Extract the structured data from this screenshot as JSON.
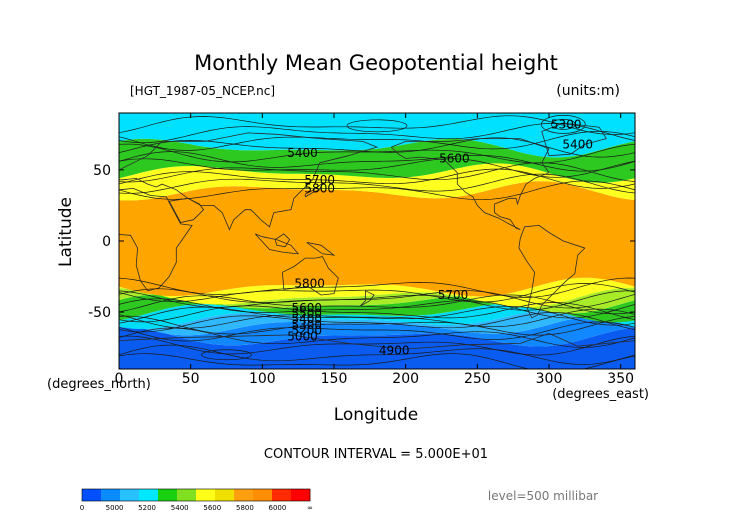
{
  "chart_data": {
    "type": "heatmap",
    "title": "Monthly Mean Geopotential height",
    "file_label": "[HGT_1987-05_NCEP.nc]",
    "units_label": "(units:m)",
    "xlabel": "Longitude",
    "ylabel": "Latitude",
    "x_unit_label": "(degrees_east)",
    "y_unit_label": "(degrees_north)",
    "xlim": [
      0,
      360
    ],
    "ylim": [
      -90,
      90
    ],
    "x_ticks": [
      0,
      50,
      100,
      150,
      200,
      250,
      300,
      350
    ],
    "y_ticks": [
      50,
      0,
      -50
    ],
    "contour_interval_text": "CONTOUR INTERVAL = 5.000E+01",
    "level_text": "level=500 millibar",
    "contour_labels": [
      {
        "text": "5300",
        "lon": 312,
        "lat": 82
      },
      {
        "text": "5400",
        "lon": 128,
        "lat": 62
      },
      {
        "text": "5400",
        "lon": 320,
        "lat": 68
      },
      {
        "text": "5600",
        "lon": 234,
        "lat": 58
      },
      {
        "text": "5700",
        "lon": 140,
        "lat": 43
      },
      {
        "text": "5800",
        "lon": 140,
        "lat": 37
      },
      {
        "text": "5800",
        "lon": 133,
        "lat": -30
      },
      {
        "text": "5700",
        "lon": 233,
        "lat": -38
      },
      {
        "text": "5600",
        "lon": 131,
        "lat": -47
      },
      {
        "text": "5500",
        "lon": 131,
        "lat": -51
      },
      {
        "text": "5400",
        "lon": 131,
        "lat": -55
      },
      {
        "text": "5300",
        "lon": 131,
        "lat": -59
      },
      {
        "text": "5200",
        "lon": 131,
        "lat": -63
      },
      {
        "text": "5000",
        "lon": 128,
        "lat": -67
      },
      {
        "text": "4900",
        "lon": 192,
        "lat": -77
      }
    ],
    "colorbar": {
      "ticks": [
        "0",
        "5000",
        "5200",
        "5400",
        "5600",
        "5800",
        "6000",
        "∞"
      ],
      "colors": [
        "#0050ff",
        "#0a8cff",
        "#28c0ff",
        "#00e8ff",
        "#18d010",
        "#80e020",
        "#ffff18",
        "#f0e000",
        "#ff9f10",
        "#ff8f00",
        "#ff2a00",
        "#ff0000"
      ]
    },
    "bands": [
      {
        "color": "#0a5cf0",
        "lat_range": [
          -90,
          -68
        ]
      },
      {
        "color": "#1188ff",
        "lat_range": [
          -68,
          -60
        ]
      },
      {
        "color": "#30b8ff",
        "lat_range": [
          -60,
          -55
        ]
      },
      {
        "color": "#00ddf8",
        "lat_range": [
          -55,
          -50
        ]
      },
      {
        "color": "#2dc820",
        "lat_range": [
          -50,
          -44
        ]
      },
      {
        "color": "#a8ec28",
        "lat_range": [
          -44,
          -40
        ]
      },
      {
        "color": "#ffff20",
        "lat_range": [
          -40,
          -33
        ]
      },
      {
        "color": "#ffa500",
        "lat_range": [
          -33,
          35
        ]
      },
      {
        "color": "#ffff20",
        "lat_range": [
          35,
          48
        ]
      },
      {
        "color": "#2dc820",
        "lat_range": [
          48,
          66
        ]
      },
      {
        "color": "#00e0ff",
        "lat_range": [
          66,
          90
        ]
      }
    ]
  }
}
